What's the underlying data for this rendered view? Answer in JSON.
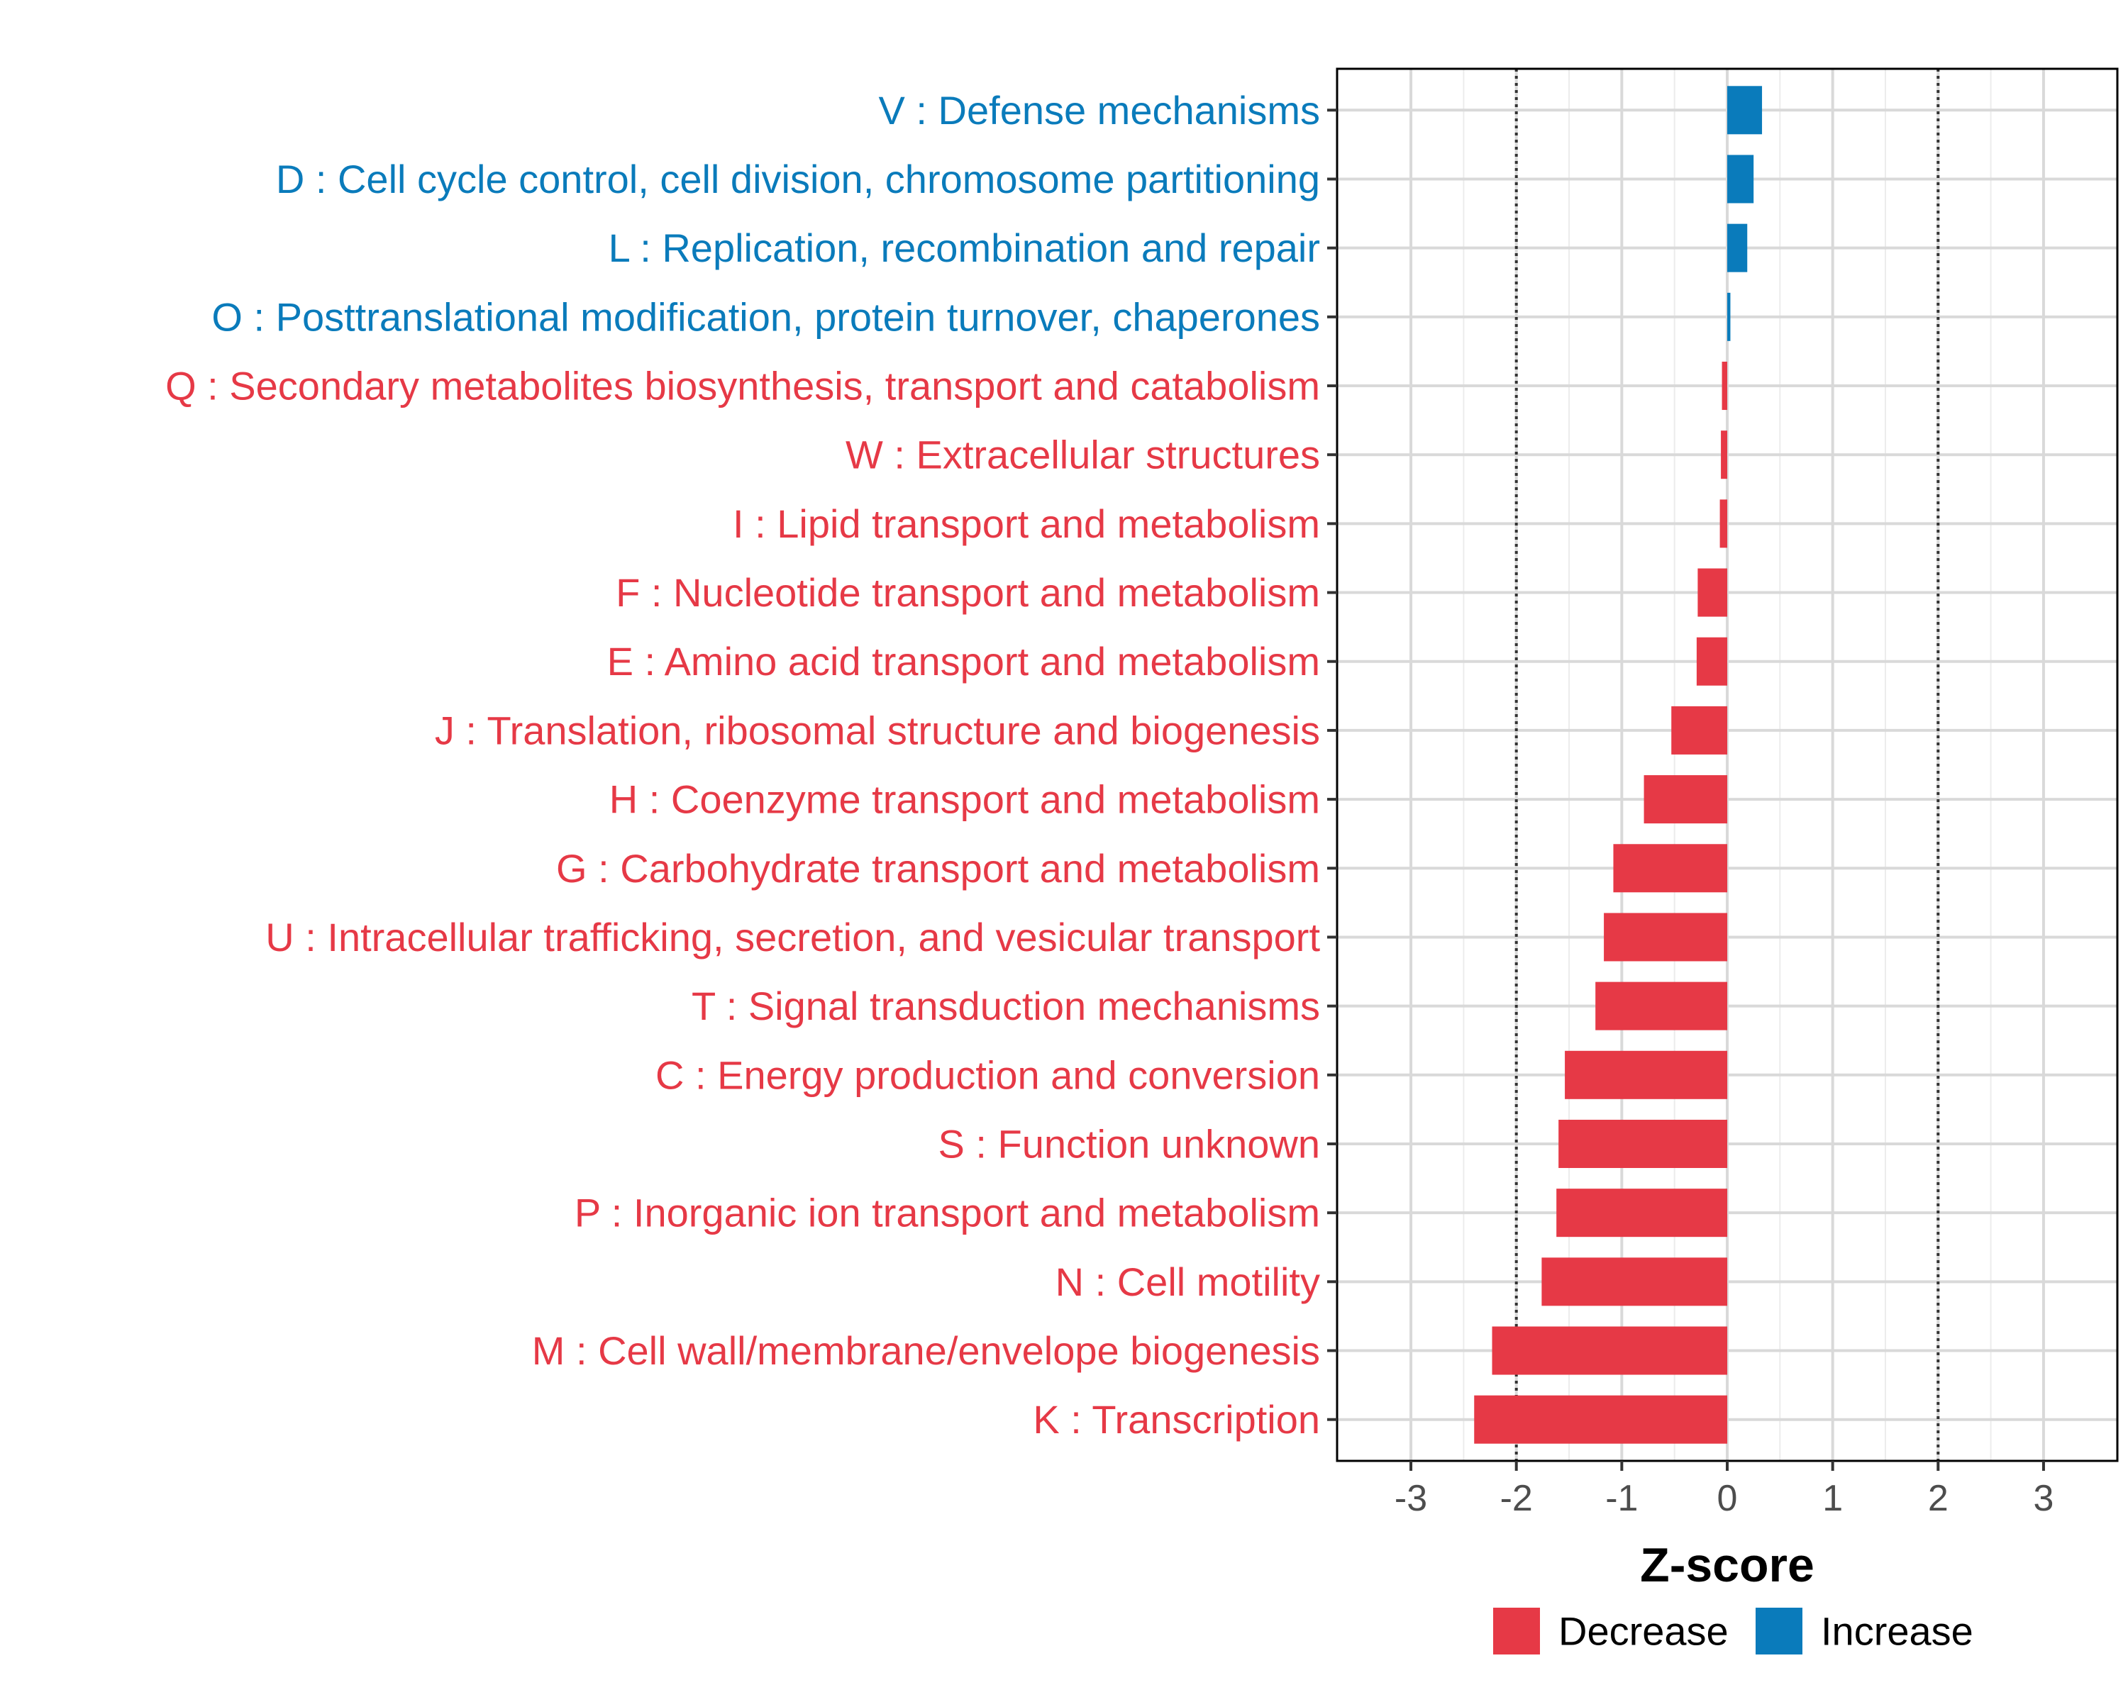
{
  "chart_data": {
    "type": "bar",
    "orientation": "horizontal",
    "xlabel": "Z-score",
    "xlim": [
      -3.7,
      3.7
    ],
    "xticks": [
      -3,
      -2,
      -1,
      0,
      1,
      2,
      3
    ],
    "xtick_labels": [
      "-3",
      "-2",
      "-1",
      "0",
      "1",
      "2",
      "3"
    ],
    "threshold_lines": [
      -2,
      2
    ],
    "grid": true,
    "colors": {
      "Decrease": "#e63946",
      "Increase": "#0a7bbb"
    },
    "legend": {
      "position": "bottom",
      "entries": [
        {
          "label": "Decrease",
          "color": "#e63946"
        },
        {
          "label": "Increase",
          "color": "#0a7bbb"
        }
      ]
    },
    "categories": [
      "V : Defense mechanisms",
      "D : Cell cycle control, cell division, chromosome partitioning",
      "L : Replication, recombination and repair",
      "O : Posttranslational modification, protein turnover, chaperones",
      "Q : Secondary metabolites biosynthesis, transport and catabolism",
      "W : Extracellular structures",
      "I : Lipid transport and metabolism",
      "F : Nucleotide transport and metabolism",
      "E : Amino acid transport and metabolism",
      "J : Translation, ribosomal structure and biogenesis",
      "H : Coenzyme transport and metabolism",
      "G : Carbohydrate transport and metabolism",
      "U : Intracellular trafficking, secretion, and vesicular transport",
      "T : Signal transduction mechanisms",
      "C : Energy production and conversion",
      "S : Function unknown",
      "P : Inorganic ion transport and metabolism",
      "N : Cell motility",
      "M : Cell wall/membrane/envelope biogenesis",
      "K : Transcription"
    ],
    "values": [
      0.33,
      0.25,
      0.19,
      0.03,
      -0.05,
      -0.06,
      -0.07,
      -0.28,
      -0.29,
      -0.53,
      -0.79,
      -1.08,
      -1.17,
      -1.25,
      -1.54,
      -1.6,
      -1.62,
      -1.76,
      -2.23,
      -2.4
    ],
    "groups": [
      "Increase",
      "Increase",
      "Increase",
      "Increase",
      "Decrease",
      "Decrease",
      "Decrease",
      "Decrease",
      "Decrease",
      "Decrease",
      "Decrease",
      "Decrease",
      "Decrease",
      "Decrease",
      "Decrease",
      "Decrease",
      "Decrease",
      "Decrease",
      "Decrease",
      "Decrease"
    ]
  }
}
